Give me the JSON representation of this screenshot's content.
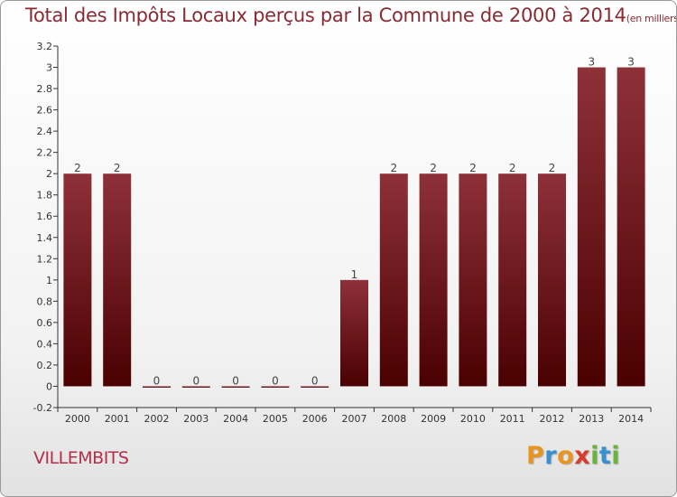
{
  "header": {
    "title": "Total des Impôts Locaux perçus par la Commune de 2000 à 2014",
    "unit": "(en milliers d'€)"
  },
  "commune": "VILLEMBITS",
  "logo": {
    "letters": [
      "P",
      "r",
      "o",
      "x",
      "i",
      "t",
      "i"
    ],
    "colors": [
      "#e8951f",
      "#3a8fd1",
      "#e8951f",
      "#d93a2b",
      "#6bb33a",
      "#3a8fd1",
      "#6bb33a"
    ]
  },
  "colors": {
    "bar_top": "#8e3139",
    "bar_bottom": "#4a0000",
    "title": "#8a2a33",
    "commune": "#b52f4a"
  },
  "chart_data": {
    "type": "bar",
    "title": "Total des Impôts Locaux perçus par la Commune de 2000 à 2014",
    "xlabel": "",
    "ylabel": "",
    "categories": [
      "2000",
      "2001",
      "2002",
      "2003",
      "2004",
      "2005",
      "2006",
      "2007",
      "2008",
      "2009",
      "2010",
      "2011",
      "2012",
      "2013",
      "2014"
    ],
    "values": [
      2,
      2,
      0,
      0,
      0,
      0,
      0,
      1,
      2,
      2,
      2,
      2,
      2,
      3,
      3
    ],
    "data_labels": [
      "2",
      "2",
      "0",
      "0",
      "0",
      "0",
      "0",
      "1",
      "2",
      "2",
      "2",
      "2",
      "2",
      "3",
      "3"
    ],
    "ylim": [
      -0.2,
      3.2
    ],
    "yticks": [
      -0.2,
      0,
      0.2,
      0.4,
      0.6,
      0.8,
      1,
      1.2,
      1.4,
      1.6,
      1.8,
      2,
      2.2,
      2.4,
      2.6,
      2.8,
      3,
      3.2
    ],
    "ytick_labels": [
      "-0.2",
      "0",
      "0.2",
      "0.4",
      "0.6",
      "0.8",
      "1",
      "1.2",
      "1.4",
      "1.6",
      "1.8",
      "2",
      "2.2",
      "2.4",
      "2.6",
      "2.8",
      "3",
      "3.2"
    ],
    "grid": false,
    "legend": "none"
  }
}
